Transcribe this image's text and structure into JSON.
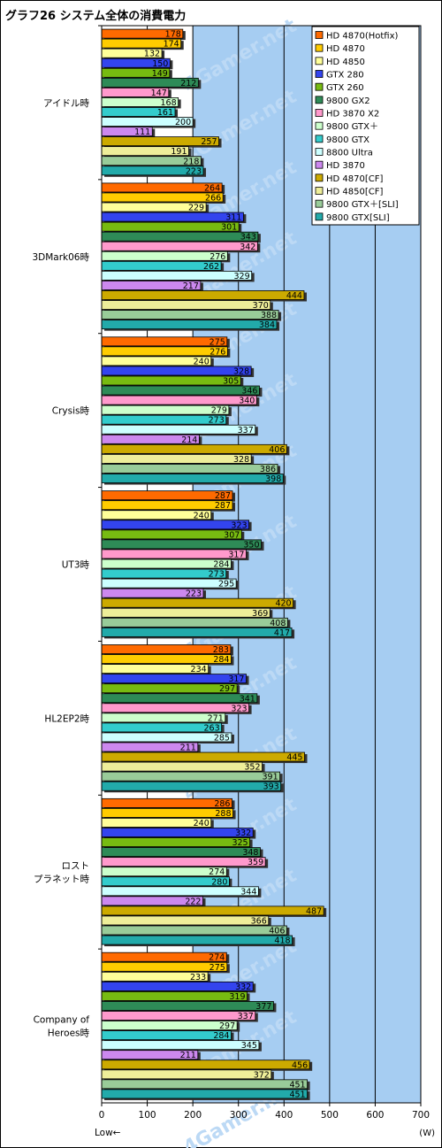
{
  "title": "グラフ26  システム全体の消費電力",
  "chart_data": {
    "type": "bar",
    "orientation": "horizontal",
    "title": "グラフ26  システム全体の消費電力",
    "xlabel_left": "Low←",
    "xunit": "(W)",
    "xlim": [
      0,
      700
    ],
    "xticks": [
      0,
      100,
      200,
      300,
      400,
      500,
      600,
      700
    ],
    "grid": true,
    "legend_position": "top-right",
    "watermark": "4Gamer.net",
    "categories": [
      [
        "アイドル時"
      ],
      [
        "3DMark06時"
      ],
      [
        "Crysis時"
      ],
      [
        "UT3時"
      ],
      [
        "HL2EP2時"
      ],
      [
        "ロスト",
        "プラネット時"
      ],
      [
        "Company of",
        "Heroes時"
      ]
    ],
    "series": [
      {
        "name": "HD 4870(Hotfix)",
        "color": "#ff6a00",
        "values": [
          178,
          264,
          275,
          287,
          283,
          286,
          274
        ]
      },
      {
        "name": "HD 4870",
        "color": "#ffcc00",
        "values": [
          174,
          266,
          276,
          287,
          284,
          288,
          275
        ]
      },
      {
        "name": "HD 4850",
        "color": "#ffff99",
        "values": [
          132,
          229,
          240,
          240,
          234,
          240,
          233
        ]
      },
      {
        "name": "GTX 280",
        "color": "#3344ee",
        "values": [
          150,
          311,
          328,
          323,
          317,
          332,
          332
        ]
      },
      {
        "name": "GTX 260",
        "color": "#77bb11",
        "values": [
          149,
          301,
          305,
          307,
          297,
          325,
          319
        ]
      },
      {
        "name": "9800 GX2",
        "color": "#2e8b57",
        "values": [
          212,
          343,
          346,
          350,
          341,
          348,
          377
        ]
      },
      {
        "name": "HD 3870 X2",
        "color": "#ff99cc",
        "values": [
          147,
          342,
          340,
          317,
          323,
          359,
          337
        ]
      },
      {
        "name": "9800 GTX＋",
        "color": "#ccffcc",
        "values": [
          168,
          276,
          279,
          284,
          271,
          274,
          297
        ]
      },
      {
        "name": "9800 GTX",
        "color": "#33cccc",
        "values": [
          161,
          262,
          273,
          273,
          263,
          280,
          284
        ]
      },
      {
        "name": "8800 Ultra",
        "color": "#ccffff",
        "values": [
          200,
          329,
          337,
          295,
          285,
          344,
          345
        ]
      },
      {
        "name": "HD 3870",
        "color": "#cc88ee",
        "values": [
          111,
          217,
          214,
          223,
          211,
          222,
          211
        ]
      },
      {
        "name": "HD 4870[CF]",
        "color": "#ccaa00",
        "values": [
          257,
          444,
          406,
          420,
          445,
          487,
          456
        ]
      },
      {
        "name": "HD 4850[CF]",
        "color": "#eeee99",
        "values": [
          191,
          370,
          328,
          369,
          352,
          366,
          372
        ]
      },
      {
        "name": "9800 GTX＋[SLI]",
        "color": "#99cc99",
        "values": [
          218,
          388,
          386,
          408,
          391,
          406,
          451
        ]
      },
      {
        "name": "9800 GTX[SLI]",
        "color": "#22aaaa",
        "values": [
          223,
          384,
          398,
          417,
          393,
          418,
          451
        ]
      }
    ]
  }
}
